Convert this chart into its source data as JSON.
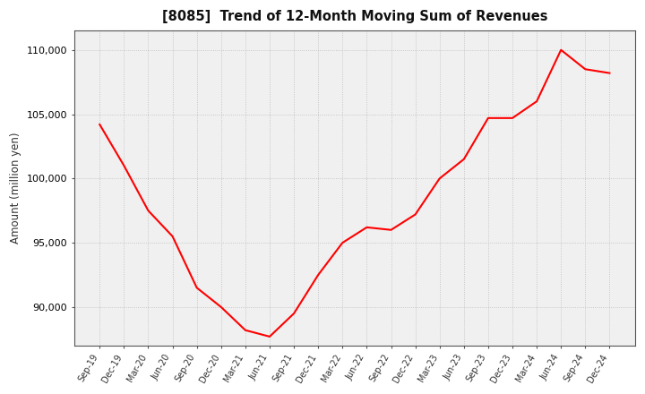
{
  "title": "[8085]  Trend of 12-Month Moving Sum of Revenues",
  "ylabel": "Amount (million yen)",
  "line_color": "#ff0000",
  "background_color": "#ffffff",
  "plot_bg_color": "#f0f0f0",
  "grid_color": "#bbbbbb",
  "ylim": [
    87000,
    111500
  ],
  "yticks": [
    90000,
    95000,
    100000,
    105000,
    110000
  ],
  "x_labels": [
    "Sep-19",
    "Dec-19",
    "Mar-20",
    "Jun-20",
    "Sep-20",
    "Dec-20",
    "Mar-21",
    "Jun-21",
    "Sep-21",
    "Dec-21",
    "Mar-22",
    "Jun-22",
    "Sep-22",
    "Dec-22",
    "Mar-23",
    "Jun-23",
    "Sep-23",
    "Dec-23",
    "Mar-24",
    "Jun-24",
    "Sep-24",
    "Dec-24"
  ],
  "values": [
    104200,
    101000,
    97500,
    95500,
    91500,
    90000,
    88200,
    87700,
    89500,
    92500,
    95000,
    96200,
    96000,
    97200,
    100000,
    101500,
    104700,
    104700,
    106000,
    110000,
    108500,
    108200
  ]
}
